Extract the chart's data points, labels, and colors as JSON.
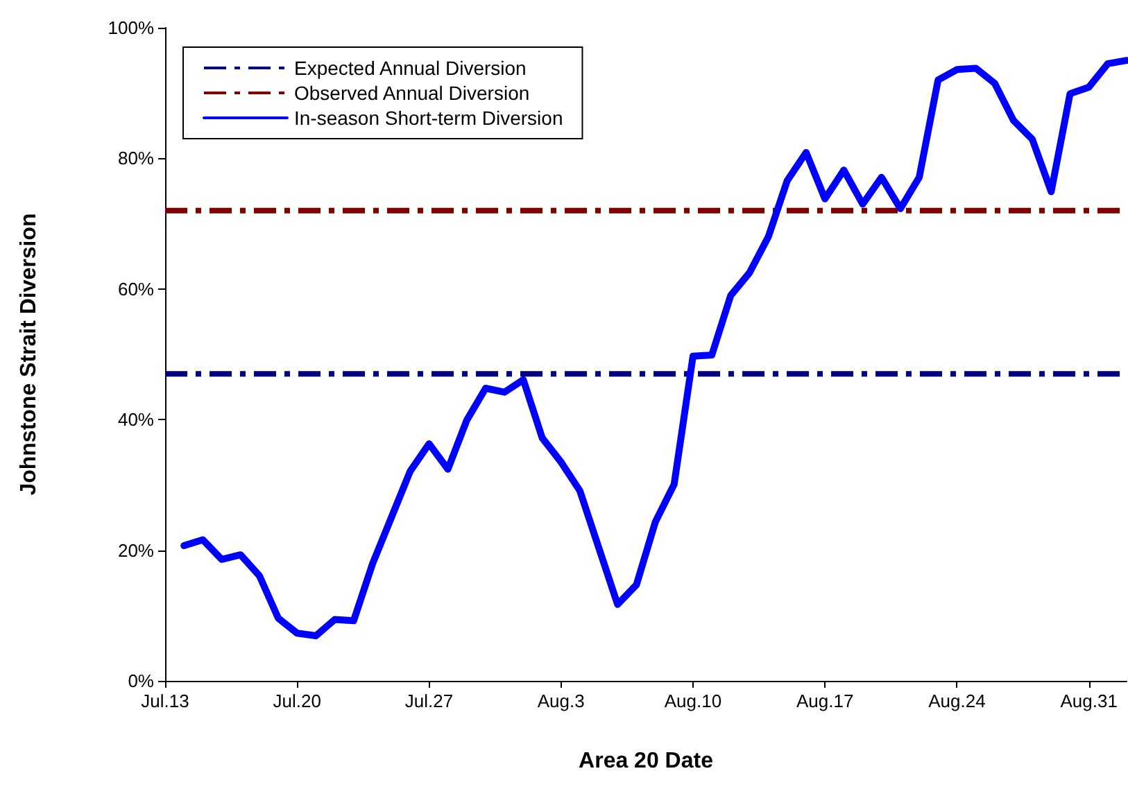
{
  "chart_data": {
    "type": "line",
    "xlabel": "Area 20 Date",
    "ylabel": "Johnstone Strait Diversion",
    "x": [
      "--07-14",
      "--07-15",
      "--07-16",
      "--07-17",
      "--07-18",
      "--07-19",
      "--07-20",
      "--07-21",
      "--07-22",
      "--07-23",
      "--07-24",
      "--07-25",
      "--07-26",
      "--07-27",
      "--07-28",
      "--07-29",
      "--07-30",
      "--07-31",
      "--08-01",
      "--08-02",
      "--08-03",
      "--08-04",
      "--08-05",
      "--08-06",
      "--08-07",
      "--08-08",
      "--08-09",
      "--08-10",
      "--08-11",
      "--08-12",
      "--08-13",
      "--08-14",
      "--08-15",
      "--08-16",
      "--08-17",
      "--08-18",
      "--08-19",
      "--08-20",
      "--08-21",
      "--08-22",
      "--08-23",
      "--08-24",
      "--08-25",
      "--08-26",
      "--08-27",
      "--08-28",
      "--08-29",
      "--08-30",
      "--08-31",
      "--09-01",
      "--09-02"
    ],
    "series": [
      {
        "name": "In-season Short-term Diversion",
        "color": "#0000ff",
        "values": [
          20.7,
          21.6,
          18.6,
          19.3,
          16.1,
          9.6,
          7.3,
          6.9,
          9.4,
          9.2,
          17.9,
          25.0,
          32.1,
          36.3,
          32.4,
          39.9,
          44.8,
          44.2,
          46.1,
          37.2,
          33.5,
          29.1,
          20.4,
          11.7,
          14.7,
          24.3,
          30.1,
          49.7,
          49.9,
          59.0,
          62.5,
          68.0,
          76.6,
          80.9,
          73.8,
          78.2,
          73.0,
          77.1,
          72.3,
          77.1,
          92.0,
          93.6,
          93.8,
          91.5,
          85.8,
          82.9,
          74.9,
          89.9,
          90.9,
          94.5,
          95.0
        ]
      }
    ],
    "ref_lines": [
      {
        "axis": "y",
        "value": 47,
        "label": "Expected Annual Diversion",
        "color": "#000080",
        "line_style": "dashed"
      },
      {
        "axis": "y",
        "value": 72,
        "label": "Observed Annual Diversion",
        "color": "#800000",
        "line_style": "dashed"
      }
    ],
    "xlim": [
      "--07-13",
      "--09-02"
    ],
    "xticks": [
      {
        "value": "--07-13",
        "label": "Jul.13"
      },
      {
        "value": "--07-20",
        "label": "Jul.20"
      },
      {
        "value": "--07-27",
        "label": "Jul.27"
      },
      {
        "value": "--08-03",
        "label": "Aug.3"
      },
      {
        "value": "--08-10",
        "label": "Aug.10"
      },
      {
        "value": "--08-17",
        "label": "Aug.17"
      },
      {
        "value": "--08-24",
        "label": "Aug.24"
      },
      {
        "value": "--08-31",
        "label": "Aug.31"
      }
    ],
    "ylim": [
      0,
      100
    ],
    "yticks": [
      {
        "value": 0,
        "label": "0%"
      },
      {
        "value": 20,
        "label": "20%"
      },
      {
        "value": 40,
        "label": "40%"
      },
      {
        "value": 60,
        "label": "60%"
      },
      {
        "value": 80,
        "label": "80%"
      },
      {
        "value": 100,
        "label": "100%"
      }
    ],
    "grid": false,
    "legend": "top left",
    "marker": "none",
    "line_style": "solid"
  }
}
